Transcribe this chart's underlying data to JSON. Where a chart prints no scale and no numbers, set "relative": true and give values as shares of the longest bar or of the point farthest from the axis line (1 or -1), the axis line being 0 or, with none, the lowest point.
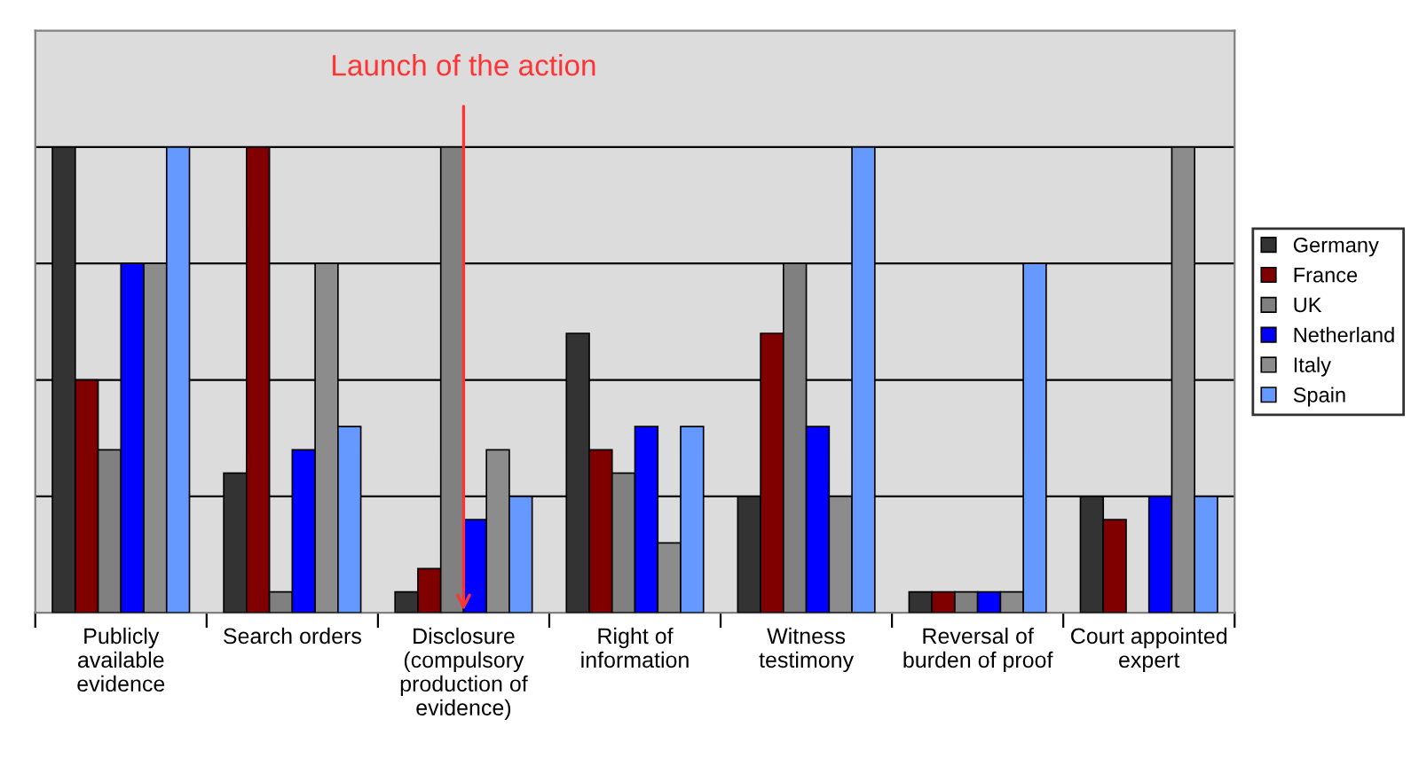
{
  "chart_data": {
    "type": "bar",
    "relative": true,
    "categories": [
      "Publicly\navailable\nevidence",
      "Search orders",
      "Disclosure\n(compulsory\nproduction of\nevidence)",
      "Right of\ninformation",
      "Witness\ntestimony",
      "Reversal of\nburden of proof",
      "Court appointed\nexpert"
    ],
    "series": [
      {
        "name": "Germany",
        "color": "#333333",
        "values": [
          1.0,
          0.3,
          0.045,
          0.6,
          0.25,
          0.045,
          0.25
        ]
      },
      {
        "name": "France",
        "color": "#800000",
        "values": [
          0.5,
          1.0,
          0.095,
          0.35,
          0.6,
          0.045,
          0.2
        ]
      },
      {
        "name": "UK",
        "color": "#808080",
        "values": [
          0.35,
          0.045,
          1.0,
          0.3,
          0.75,
          0.045,
          null
        ]
      },
      {
        "name": "Netherland",
        "color": "#0000ff",
        "values": [
          0.75,
          0.35,
          0.2,
          0.4,
          0.4,
          0.045,
          0.25
        ]
      },
      {
        "name": "Italy",
        "color": "#8c8c8c",
        "values": [
          0.75,
          0.75,
          0.35,
          0.15,
          0.25,
          0.045,
          1.0
        ]
      },
      {
        "name": "Spain",
        "color": "#6699ff",
        "values": [
          1.0,
          0.4,
          0.25,
          0.4,
          1.0,
          0.75,
          0.25
        ]
      }
    ],
    "annotations": [
      {
        "text": "Launch of the action",
        "x": "Disclosure\n(compulsory\nproduction of\nevidence)",
        "y": 0
      }
    ],
    "grid": "y",
    "legend": "right"
  }
}
